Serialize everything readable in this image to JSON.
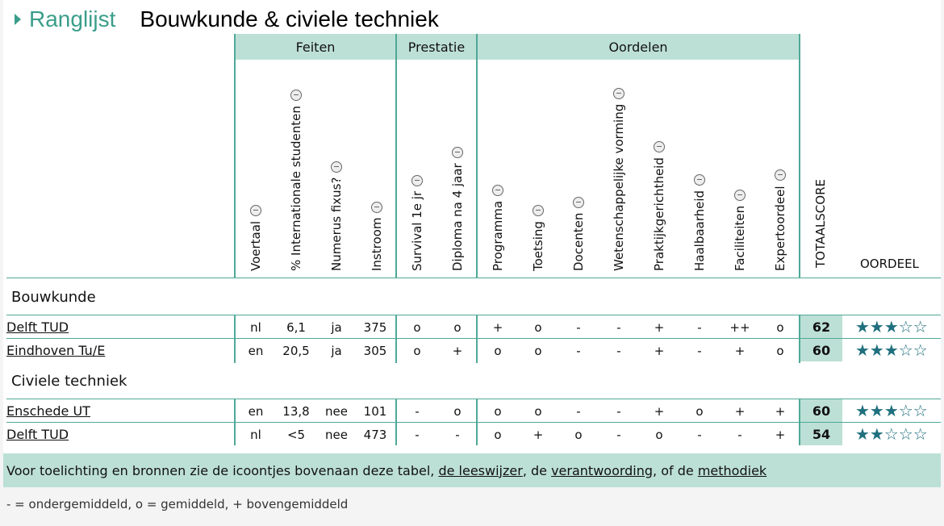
{
  "header": {
    "ranglijst": "Ranglijst",
    "title": "Bouwkunde & civiele techniek"
  },
  "groups": {
    "feiten": "Feiten",
    "prestatie": "Prestatie",
    "oordelen": "Oordelen"
  },
  "columns": [
    "Voertaal",
    "% Internationale studenten",
    "Numerus fixus?",
    "Instroom",
    "Survival 1e jr",
    "Diploma na 4 jaar",
    "Programma",
    "Toetsing",
    "Docenten",
    "Wetenschappelijke vorming",
    "Praktijkgerichtheid",
    "Haalbaarheid",
    "Faciliteiten",
    "Expertoordeel"
  ],
  "totaal_label": "TOTAALSCORE",
  "oordeel_label": "OORDEEL",
  "sections": [
    {
      "name": "Bouwkunde",
      "rows": [
        {
          "name": "Delft TUD",
          "cells": [
            "nl",
            "6,1",
            "ja",
            "375",
            "o",
            "o",
            "+",
            "o",
            "-",
            "-",
            "+",
            "-",
            "++",
            "o"
          ],
          "score": "62",
          "stars": "★★★☆☆"
        },
        {
          "name": "Eindhoven Tu/E",
          "cells": [
            "en",
            "20,5",
            "ja",
            "305",
            "o",
            "+",
            "o",
            "o",
            "-",
            "-",
            "+",
            "-",
            "+",
            "o"
          ],
          "score": "60",
          "stars": "★★★☆☆"
        }
      ]
    },
    {
      "name": "Civiele techniek",
      "rows": [
        {
          "name": "Enschede UT",
          "cells": [
            "en",
            "13,8",
            "nee",
            "101",
            "-",
            "o",
            "o",
            "o",
            "-",
            "-",
            "+",
            "o",
            "+",
            "+"
          ],
          "score": "60",
          "stars": "★★★☆☆"
        },
        {
          "name": "Delft TUD",
          "cells": [
            "nl",
            "<5",
            "nee",
            "473",
            "-",
            "-",
            "o",
            "+",
            "o",
            "-",
            "o",
            "-",
            "-",
            "+"
          ],
          "score": "54",
          "stars": "★★☆☆☆"
        }
      ]
    }
  ],
  "info": {
    "text1": "Voor toelichting en bronnen zie de icoontjes bovenaan deze tabel, ",
    "link1": "de leeswijzer",
    "text2": ", de ",
    "link2": "verantwoording",
    "text3": ", of de ",
    "link3": "methodiek"
  },
  "legend": "- = ondergemiddeld, o = gemiddeld, + bovengemiddeld"
}
